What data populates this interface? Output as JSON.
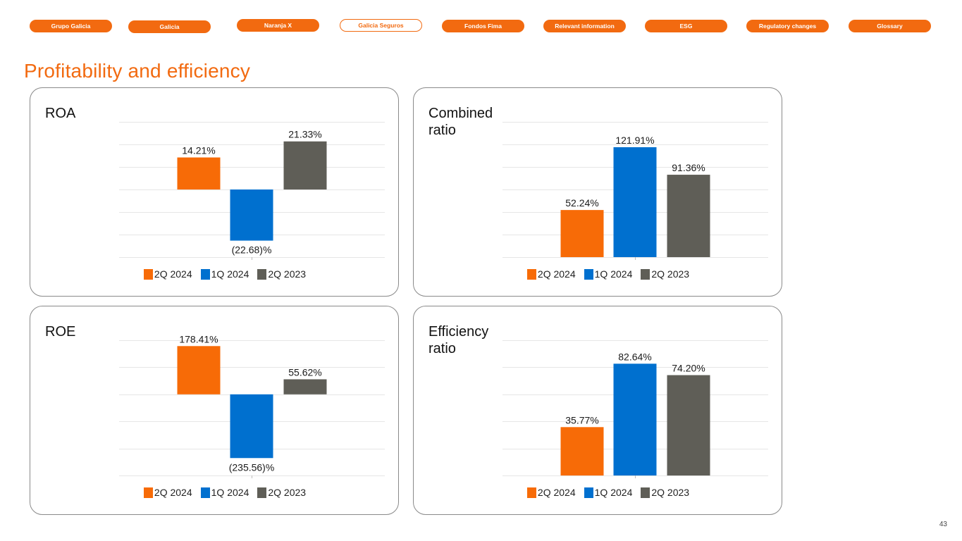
{
  "nav": {
    "items": [
      {
        "label": "Grupo Galicia",
        "active": false
      },
      {
        "label": "Galicia",
        "active": false
      },
      {
        "label": "Naranja X",
        "active": false
      },
      {
        "label": "Galicia Seguros",
        "active": true
      },
      {
        "label": "Fondos Fima",
        "active": false
      },
      {
        "label": "Relevant information",
        "active": false
      },
      {
        "label": "ESG",
        "active": false
      },
      {
        "label": "Regulatory changes",
        "active": false
      },
      {
        "label": "Glossary",
        "active": false
      }
    ]
  },
  "page": {
    "title": "Profitability and efficiency",
    "number": "43"
  },
  "colors": {
    "accent": "#f26a10",
    "series": [
      "#f76b07",
      "#0070cf",
      "#5f5e57"
    ],
    "gridline": "#e6e6e6"
  },
  "chart_data": [
    {
      "id": "roa",
      "type": "bar",
      "title": "ROA",
      "categories": [
        "2Q 2024",
        "1Q 2024",
        "2Q 2023"
      ],
      "values": [
        14.21,
        -22.68,
        21.33
      ],
      "labels": [
        "14.21%",
        "(22.68)%",
        "21.33%"
      ],
      "ylim": [
        -30,
        30
      ],
      "ytick_step": 10,
      "grid": true,
      "legend": "bottom",
      "xlabel": "",
      "ylabel": ""
    },
    {
      "id": "combined-ratio",
      "type": "bar",
      "title": "Combined ratio",
      "categories": [
        "2Q 2024",
        "1Q 2024",
        "2Q 2023"
      ],
      "values": [
        52.24,
        121.91,
        91.36
      ],
      "labels": [
        "52.24%",
        "121.91%",
        "91.36%"
      ],
      "ylim": [
        0,
        150
      ],
      "ytick_step": 25,
      "grid": true,
      "legend": "bottom",
      "xlabel": "",
      "ylabel": ""
    },
    {
      "id": "roe",
      "type": "bar",
      "title": "ROE",
      "categories": [
        "2Q 2024",
        "1Q 2024",
        "2Q 2023"
      ],
      "values": [
        178.41,
        -235.56,
        55.62
      ],
      "labels": [
        "178.41%",
        "(235.56)%",
        "55.62%"
      ],
      "ylim": [
        -300,
        200
      ],
      "ytick_step": 100,
      "grid": true,
      "legend": "bottom",
      "xlabel": "",
      "ylabel": ""
    },
    {
      "id": "efficiency-ratio",
      "type": "bar",
      "title": "Efficiency ratio",
      "categories": [
        "2Q 2024",
        "1Q 2024",
        "2Q 2023"
      ],
      "values": [
        35.77,
        82.64,
        74.2
      ],
      "labels": [
        "35.77%",
        "82.64%",
        "74.20%"
      ],
      "ylim": [
        0,
        100
      ],
      "ytick_step": 20,
      "grid": true,
      "legend": "bottom",
      "xlabel": "",
      "ylabel": ""
    }
  ]
}
